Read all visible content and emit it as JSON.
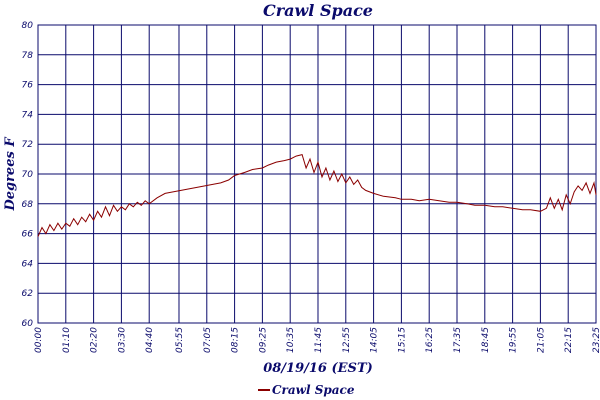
{
  "chart_data": {
    "type": "line",
    "title": "Crawl Space",
    "xlabel": "08/19/16 (EST)",
    "ylabel": "Degrees F",
    "ylim": [
      60,
      80
    ],
    "y_ticks": [
      "60",
      "62",
      "64",
      "66",
      "68",
      "70",
      "72",
      "74",
      "76",
      "78",
      "80"
    ],
    "x_ticks": [
      "00:00",
      "01:10",
      "02:20",
      "03:30",
      "04:40",
      "05:55",
      "07:05",
      "08:15",
      "09:25",
      "10:35",
      "11:45",
      "12:55",
      "14:05",
      "15:15",
      "16:25",
      "17:35",
      "18:45",
      "19:55",
      "21:05",
      "22:15",
      "23:25"
    ],
    "grid": true,
    "legend_position": "bottom-center",
    "series": [
      {
        "name": "Crawl Space",
        "color": "#8b0000",
        "points": [
          [
            "00:00",
            65.8
          ],
          [
            "00:10",
            66.4
          ],
          [
            "00:20",
            66.0
          ],
          [
            "00:30",
            66.6
          ],
          [
            "00:40",
            66.2
          ],
          [
            "00:50",
            66.7
          ],
          [
            "01:00",
            66.3
          ],
          [
            "01:10",
            66.7
          ],
          [
            "01:20",
            66.5
          ],
          [
            "01:30",
            67.0
          ],
          [
            "01:40",
            66.6
          ],
          [
            "01:50",
            67.1
          ],
          [
            "02:00",
            66.8
          ],
          [
            "02:10",
            67.3
          ],
          [
            "02:20",
            66.9
          ],
          [
            "02:30",
            67.5
          ],
          [
            "02:40",
            67.1
          ],
          [
            "02:50",
            67.8
          ],
          [
            "03:00",
            67.2
          ],
          [
            "03:10",
            67.9
          ],
          [
            "03:20",
            67.5
          ],
          [
            "03:30",
            67.8
          ],
          [
            "03:40",
            67.6
          ],
          [
            "03:50",
            68.0
          ],
          [
            "04:00",
            67.8
          ],
          [
            "04:10",
            68.1
          ],
          [
            "04:20",
            67.9
          ],
          [
            "04:30",
            68.2
          ],
          [
            "04:40",
            68.0
          ],
          [
            "05:00",
            68.4
          ],
          [
            "05:20",
            68.7
          ],
          [
            "05:40",
            68.8
          ],
          [
            "06:00",
            68.9
          ],
          [
            "06:20",
            69.0
          ],
          [
            "06:40",
            69.1
          ],
          [
            "07:00",
            69.2
          ],
          [
            "07:20",
            69.3
          ],
          [
            "07:40",
            69.4
          ],
          [
            "08:00",
            69.6
          ],
          [
            "08:15",
            69.9
          ],
          [
            "08:40",
            70.1
          ],
          [
            "09:00",
            70.3
          ],
          [
            "09:25",
            70.4
          ],
          [
            "09:40",
            70.6
          ],
          [
            "10:00",
            70.8
          ],
          [
            "10:20",
            70.9
          ],
          [
            "10:35",
            71.0
          ],
          [
            "10:50",
            71.2
          ],
          [
            "11:05",
            71.3
          ],
          [
            "11:15",
            70.4
          ],
          [
            "11:25",
            71.0
          ],
          [
            "11:35",
            70.1
          ],
          [
            "11:45",
            70.8
          ],
          [
            "11:55",
            69.8
          ],
          [
            "12:05",
            70.4
          ],
          [
            "12:15",
            69.6
          ],
          [
            "12:25",
            70.2
          ],
          [
            "12:35",
            69.5
          ],
          [
            "12:45",
            70.0
          ],
          [
            "12:55",
            69.4
          ],
          [
            "13:05",
            69.8
          ],
          [
            "13:15",
            69.3
          ],
          [
            "13:25",
            69.6
          ],
          [
            "13:35",
            69.1
          ],
          [
            "13:45",
            68.9
          ],
          [
            "14:05",
            68.7
          ],
          [
            "14:30",
            68.5
          ],
          [
            "15:00",
            68.4
          ],
          [
            "15:15",
            68.3
          ],
          [
            "15:40",
            68.3
          ],
          [
            "16:00",
            68.2
          ],
          [
            "16:25",
            68.3
          ],
          [
            "16:50",
            68.2
          ],
          [
            "17:15",
            68.1
          ],
          [
            "17:35",
            68.1
          ],
          [
            "18:00",
            68.0
          ],
          [
            "18:20",
            67.9
          ],
          [
            "18:45",
            67.9
          ],
          [
            "19:10",
            67.8
          ],
          [
            "19:30",
            67.8
          ],
          [
            "19:55",
            67.7
          ],
          [
            "20:20",
            67.6
          ],
          [
            "20:40",
            67.6
          ],
          [
            "21:05",
            67.5
          ],
          [
            "21:20",
            67.7
          ],
          [
            "21:30",
            68.4
          ],
          [
            "21:40",
            67.7
          ],
          [
            "21:50",
            68.3
          ],
          [
            "22:00",
            67.6
          ],
          [
            "22:10",
            68.6
          ],
          [
            "22:20",
            68.0
          ],
          [
            "22:30",
            68.8
          ],
          [
            "22:40",
            69.2
          ],
          [
            "22:50",
            68.9
          ],
          [
            "23:00",
            69.4
          ],
          [
            "23:10",
            68.7
          ],
          [
            "23:20",
            69.4
          ],
          [
            "23:25",
            68.6
          ]
        ]
      }
    ]
  }
}
